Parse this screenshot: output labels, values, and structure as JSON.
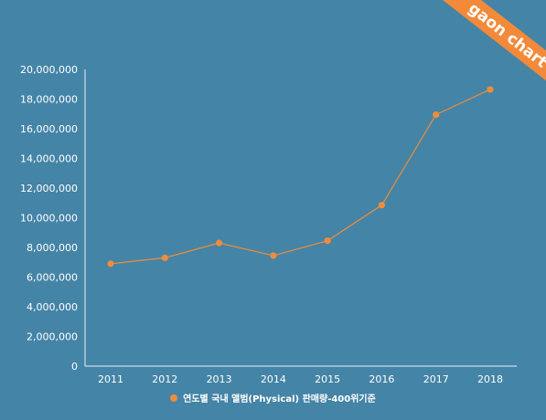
{
  "brand": {
    "logo_text": "gaon chart"
  },
  "colors": {
    "background": "#4484a6",
    "series": "#ef8c3c",
    "axis": "#ffffff"
  },
  "chart_data": {
    "type": "line",
    "categories": [
      "2011",
      "2012",
      "2013",
      "2014",
      "2015",
      "2016",
      "2017",
      "2018"
    ],
    "series": [
      {
        "name": "연도별 국내 앨범(Physical) 판매량-400위기준",
        "values": [
          6900000,
          7300000,
          8300000,
          7450000,
          8450000,
          10850000,
          16950000,
          18650000
        ]
      }
    ],
    "ylim": [
      0,
      20000000
    ],
    "yticks": [
      "0",
      "2,000,000",
      "4,000,000",
      "6,000,000",
      "8,000,000",
      "10,000,000",
      "12,000,000",
      "14,000,000",
      "16,000,000",
      "18,000,000",
      "20,000,000"
    ],
    "grid": false,
    "legend_position": "bottom"
  }
}
